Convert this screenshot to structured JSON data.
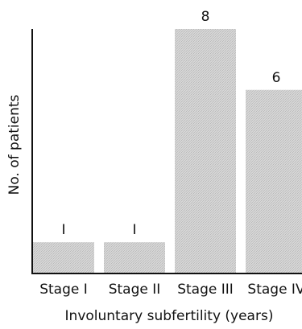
{
  "chart_data": {
    "type": "bar",
    "title": "",
    "xlabel": "Involuntary subfertility (years)",
    "ylabel": "No. of patients",
    "categories": [
      "Stage I",
      "Stage II",
      "Stage III",
      "Stage IV"
    ],
    "values": [
      1,
      1,
      8,
      6
    ],
    "data_labels": [
      "I",
      "I",
      "8",
      "6"
    ],
    "ylim": [
      0,
      8
    ],
    "grid": false,
    "legend": "none",
    "bar_color": "#cfcfcf",
    "axis_color": "#111111"
  }
}
